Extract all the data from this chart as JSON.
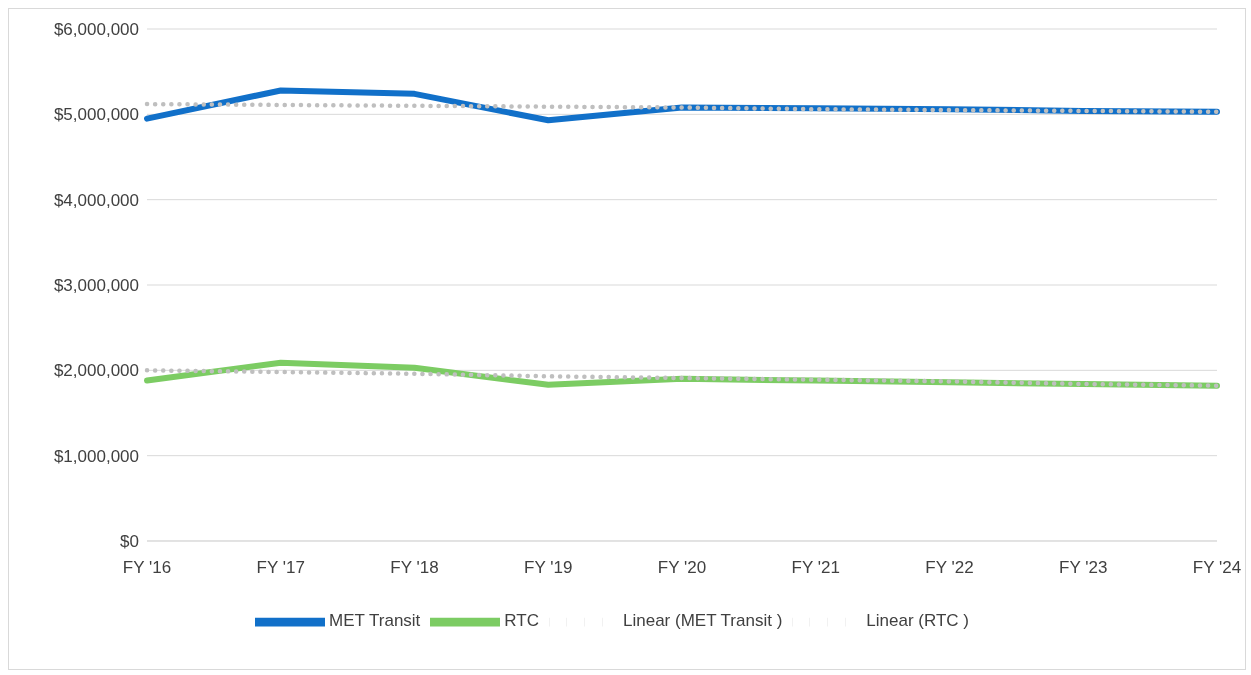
{
  "chart_data": {
    "type": "line",
    "categories": [
      "FY '16",
      "FY '17",
      "FY '18",
      "FY '19",
      "FY '20",
      "FY '21",
      "FY '22",
      "FY '23",
      "FY '24"
    ],
    "series": [
      {
        "name": "MET Transit",
        "color": "#1170c9",
        "values": [
          4950000,
          5280000,
          5240000,
          4930000,
          5080000,
          5070000,
          5060000,
          5040000,
          5030000
        ]
      },
      {
        "name": "RTC",
        "color": "#7ccc63",
        "values": [
          1880000,
          2090000,
          2030000,
          1830000,
          1900000,
          1880000,
          1860000,
          1840000,
          1820000
        ]
      },
      {
        "name": "Linear (MET Transit )",
        "color": "#bfbfbf",
        "line_style": "dotted",
        "values": [
          5120000,
          5110000,
          5100000,
          5090000,
          5080000,
          5060000,
          5050000,
          5040000,
          5030000
        ]
      },
      {
        "name": "Linear (RTC )",
        "color": "#bfbfbf",
        "line_style": "dotted",
        "values": [
          2000000,
          1980000,
          1960000,
          1930000,
          1910000,
          1890000,
          1870000,
          1840000,
          1820000
        ]
      }
    ],
    "ylim": [
      0,
      6000000
    ],
    "yticks": [
      {
        "value": 0,
        "label": "$0"
      },
      {
        "value": 1000000,
        "label": "$1,000,000"
      },
      {
        "value": 2000000,
        "label": "$2,000,000"
      },
      {
        "value": 3000000,
        "label": "$3,000,000"
      },
      {
        "value": 4000000,
        "label": "$4,000,000"
      },
      {
        "value": 5000000,
        "label": "$5,000,000"
      },
      {
        "value": 6000000,
        "label": "$6,000,000"
      }
    ],
    "grid": "y",
    "legend": "bottom",
    "marker": "none",
    "line_style": "solid"
  }
}
